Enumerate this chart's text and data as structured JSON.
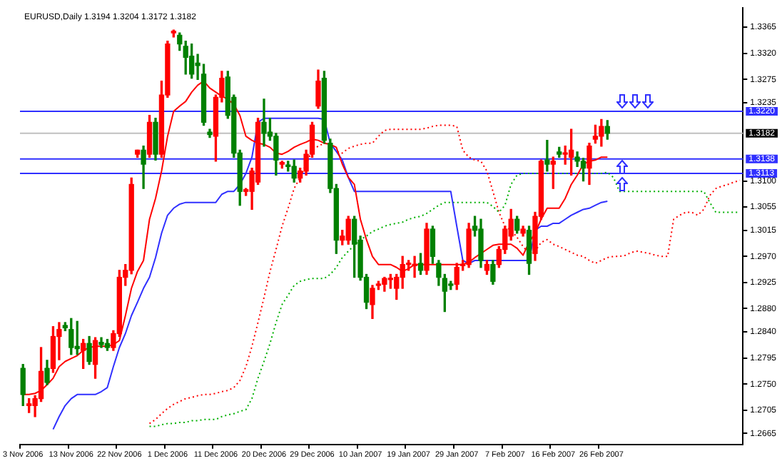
{
  "chart_data": {
    "type": "candlestick",
    "title": "EURUSD,Daily 1.3194 1.3204 1.3172 1.3182",
    "categories": [
      "3 Nov 2006",
      null,
      null,
      null,
      null,
      null,
      null,
      null,
      "13 Nov 2006",
      null,
      null,
      null,
      null,
      null,
      null,
      null,
      "22 Nov 2006",
      null,
      null,
      null,
      null,
      null,
      null,
      null,
      "1 Dec 2006",
      null,
      null,
      null,
      null,
      null,
      null,
      null,
      "11 Dec 2006",
      null,
      null,
      null,
      null,
      null,
      null,
      null,
      "20 Dec 2006",
      null,
      null,
      null,
      null,
      null,
      null,
      null,
      "29 Dec 2006",
      null,
      null,
      null,
      null,
      null,
      null,
      null,
      "10 Jan 2007",
      null,
      null,
      null,
      null,
      null,
      null,
      null,
      "19 Jan 2007",
      null,
      null,
      null,
      null,
      null,
      null,
      null,
      "29 Jan 2007",
      null,
      null,
      null,
      null,
      null,
      null,
      null,
      "7 Feb 2007",
      null,
      null,
      null,
      null,
      null,
      null,
      null,
      "16 Feb 2007",
      null,
      null,
      null,
      null,
      null,
      null,
      null,
      "26 Feb 2007",
      null,
      null,
      null,
      null,
      null,
      null,
      null,
      null,
      null,
      null,
      null,
      null,
      null,
      null,
      null,
      null,
      null,
      null,
      null,
      null,
      null,
      null,
      null
    ],
    "ohlc": [
      [
        1.2777,
        1.2784,
        1.2713,
        1.2732
      ],
      [
        1.2713,
        1.2725,
        1.2701,
        1.2716
      ],
      [
        1.2713,
        1.273,
        1.2694,
        1.2725
      ],
      [
        1.2725,
        1.2813,
        1.272,
        1.2772
      ],
      [
        1.2777,
        1.2791,
        1.2749,
        1.2753
      ],
      [
        1.2777,
        1.2849,
        1.277,
        1.2832
      ],
      [
        1.2832,
        1.2856,
        1.2792,
        1.2844
      ],
      [
        1.2851,
        1.2856,
        1.2842,
        1.2847
      ],
      [
        1.2844,
        1.2863,
        1.2801,
        1.2813
      ],
      [
        1.2815,
        1.2858,
        1.2801,
        1.2811
      ],
      [
        1.2808,
        1.2827,
        1.2777,
        1.282
      ],
      [
        1.282,
        1.2832,
        1.2784,
        1.2789
      ],
      [
        1.2784,
        1.283,
        1.276,
        1.2825
      ],
      [
        1.2822,
        1.283,
        1.2813,
        1.2818
      ],
      [
        1.282,
        1.2827,
        1.2808,
        1.2813
      ],
      [
        1.2813,
        1.2842,
        1.2808,
        1.2837
      ],
      [
        1.2837,
        1.2946,
        1.2832,
        1.2934
      ],
      [
        1.2934,
        1.2956,
        1.292,
        1.2946
      ],
      [
        1.2946,
        1.3105,
        1.294,
        1.3094
      ],
      [
        1.3146,
        1.3153,
        1.3141,
        1.3153
      ],
      [
        1.3153,
        1.316,
        1.3087,
        1.3129
      ],
      [
        1.3146,
        1.3213,
        1.3141,
        1.3201
      ],
      [
        1.3201,
        1.3208,
        1.3136,
        1.3146
      ],
      [
        1.3146,
        1.3272,
        1.3141,
        1.3248
      ],
      [
        1.3248,
        1.3341,
        1.3244,
        1.3336
      ],
      [
        1.3355,
        1.336,
        1.3348,
        1.3358
      ],
      [
        1.3351,
        1.3355,
        1.3325,
        1.3336
      ],
      [
        1.3332,
        1.3341,
        1.3284,
        1.3313
      ],
      [
        1.3315,
        1.3336,
        1.3277,
        1.3284
      ],
      [
        1.3303,
        1.3318,
        1.3275,
        1.3299
      ],
      [
        1.3284,
        1.3301,
        1.3196,
        1.3201
      ],
      [
        1.3184,
        1.3189,
        1.3175,
        1.318
      ],
      [
        1.3177,
        1.3248,
        1.3134,
        1.3244
      ],
      [
        1.3244,
        1.3289,
        1.3236,
        1.3277
      ],
      [
        1.3279,
        1.3289,
        1.3208,
        1.3213
      ],
      [
        1.3244,
        1.3248,
        1.3141,
        1.3148
      ],
      [
        1.3148,
        1.3153,
        1.3058,
        1.3082
      ],
      [
        1.3082,
        1.3087,
        1.3075,
        1.3085
      ],
      [
        1.3082,
        1.3122,
        1.3051,
        1.3117
      ],
      [
        1.3098,
        1.3208,
        1.3094,
        1.3201
      ],
      [
        1.3201,
        1.3241,
        1.316,
        1.3182
      ],
      [
        1.3184,
        1.3208,
        1.317,
        1.3177
      ],
      [
        1.3177,
        1.3182,
        1.311,
        1.3136
      ],
      [
        1.3129,
        1.3134,
        1.3122,
        1.3132
      ],
      [
        1.3127,
        1.3134,
        1.3117,
        1.3125
      ],
      [
        1.3125,
        1.3136,
        1.3098,
        1.3105
      ],
      [
        1.3105,
        1.3122,
        1.3098,
        1.3117
      ],
      [
        1.3117,
        1.3153,
        1.311,
        1.3146
      ],
      [
        1.3146,
        1.3201,
        1.3141,
        1.3196
      ],
      [
        1.3229,
        1.3291,
        1.3225,
        1.3272
      ],
      [
        1.3277,
        1.3289,
        1.3165,
        1.317
      ],
      [
        1.3165,
        1.3172,
        1.308,
        1.3087
      ],
      [
        1.3087,
        1.3094,
        1.2975,
        1.2998
      ],
      [
        1.2998,
        1.3015,
        1.299,
        1.3005
      ],
      [
        1.2998,
        1.3039,
        1.2991,
        1.3034
      ],
      [
        1.3034,
        1.3039,
        1.2934,
        1.2991
      ],
      [
        1.2998,
        1.3005,
        1.2929,
        1.2934
      ],
      [
        1.2934,
        1.2939,
        1.288,
        1.2891
      ],
      [
        1.2887,
        1.292,
        1.2863,
        1.2915
      ],
      [
        1.292,
        1.2927,
        1.2913,
        1.2922
      ],
      [
        1.2922,
        1.2934,
        1.291,
        1.2932
      ],
      [
        1.293,
        1.2939,
        1.2915,
        1.2932
      ],
      [
        1.2915,
        1.2939,
        1.2896,
        1.2934
      ],
      [
        1.2934,
        1.297,
        1.2915,
        1.2956
      ],
      [
        1.2956,
        1.2963,
        1.2946,
        1.2958
      ],
      [
        1.2954,
        1.297,
        1.2934,
        1.2956
      ],
      [
        1.2958,
        1.2975,
        1.2939,
        1.2946
      ],
      [
        1.2946,
        1.3027,
        1.2939,
        1.3017
      ],
      [
        1.3017,
        1.3022,
        1.2958,
        1.297
      ],
      [
        1.2958,
        1.2963,
        1.292,
        1.2934
      ],
      [
        1.2932,
        1.2939,
        1.2875,
        1.291
      ],
      [
        1.2922,
        1.2927,
        1.2913,
        1.292
      ],
      [
        1.2922,
        1.2958,
        1.2913,
        1.2951
      ],
      [
        1.2954,
        1.2963,
        1.2946,
        1.2956
      ],
      [
        1.2956,
        1.3027,
        1.2951,
        1.3017
      ],
      [
        1.3022,
        1.3039,
        1.3005,
        1.3015
      ],
      [
        1.3017,
        1.3034,
        1.2951,
        1.2963
      ],
      [
        1.2946,
        1.2963,
        1.2939,
        1.2956
      ],
      [
        1.2956,
        1.2963,
        1.2922,
        1.2927
      ],
      [
        1.2956,
        1.2987,
        1.2951,
        1.2982
      ],
      [
        1.2982,
        1.3022,
        1.2975,
        1.3017
      ],
      [
        1.3005,
        1.3051,
        1.2998,
        1.3034
      ],
      [
        1.3034,
        1.3039,
        1.301,
        1.3015
      ],
      [
        1.301,
        1.3022,
        1.3005,
        1.3017
      ],
      [
        1.3015,
        1.3022,
        1.2939,
        1.2958
      ],
      [
        1.2975,
        1.3046,
        1.2963,
        1.3039
      ],
      [
        1.3039,
        1.3136,
        1.3034,
        1.3134
      ],
      [
        1.3136,
        1.317,
        1.3117,
        1.3129
      ],
      [
        1.3129,
        1.3141,
        1.3087,
        1.3134
      ],
      [
        1.315,
        1.3158,
        1.3141,
        1.3146
      ],
      [
        1.3146,
        1.316,
        1.3129,
        1.3148
      ],
      [
        1.3141,
        1.3189,
        1.311,
        1.3153
      ],
      [
        1.3141,
        1.315,
        1.3125,
        1.3134
      ],
      [
        1.3134,
        1.3139,
        1.31,
        1.3122
      ],
      [
        1.3122,
        1.3165,
        1.3094,
        1.316
      ],
      [
        1.3172,
        1.3196,
        1.3165,
        1.3177
      ],
      [
        1.3177,
        1.3206,
        1.316,
        1.3194
      ],
      [
        1.3194,
        1.3204,
        1.3172,
        1.3182
      ],
      null,
      null,
      null,
      null,
      null,
      null,
      null,
      null,
      null,
      null,
      null,
      null,
      null,
      null,
      null,
      null,
      null,
      null,
      null,
      null,
      null,
      null
    ],
    "colors": [
      "#008000",
      "#ff0000",
      "#ff0000",
      "#ff0000",
      "#008000",
      "#ff0000",
      "#ff0000",
      "#008000",
      "#008000",
      "#008000",
      "#ff0000",
      "#008000",
      "#ff0000",
      "#008000",
      "#008000",
      "#ff0000",
      "#ff0000",
      "#ff0000",
      "#ff0000",
      "#ff0000",
      "#008000",
      "#ff0000",
      "#008000",
      "#ff0000",
      "#ff0000",
      "#ff0000",
      "#008000",
      "#008000",
      "#008000",
      "#008000",
      "#008000",
      "#008000",
      "#ff0000",
      "#ff0000",
      "#008000",
      "#008000",
      "#008000",
      "#ff0000",
      "#ff0000",
      "#ff0000",
      "#008000",
      "#008000",
      "#008000",
      "#ff0000",
      "#008000",
      "#008000",
      "#ff0000",
      "#ff0000",
      "#ff0000",
      "#ff0000",
      "#008000",
      "#008000",
      "#008000",
      "#ff0000",
      "#ff0000",
      "#008000",
      "#008000",
      "#008000",
      "#ff0000",
      "#ff0000",
      "#ff0000",
      "#ff0000",
      "#ff0000",
      "#ff0000",
      "#ff0000",
      "#ff0000",
      "#008000",
      "#ff0000",
      "#008000",
      "#008000",
      "#008000",
      "#008000",
      "#ff0000",
      "#ff0000",
      "#ff0000",
      "#008000",
      "#008000",
      "#ff0000",
      "#008000",
      "#ff0000",
      "#ff0000",
      "#ff0000",
      "#008000",
      "#ff0000",
      "#008000",
      "#ff0000",
      "#ff0000",
      "#008000",
      "#ff0000",
      "#008000",
      "#ff0000",
      "#ff0000",
      "#008000",
      "#008000",
      "#ff0000",
      "#ff0000",
      "#ff0000",
      "#008000",
      null,
      null,
      null,
      null,
      null,
      null,
      null,
      null,
      null,
      null,
      null,
      null,
      null,
      null,
      null,
      null,
      null,
      null,
      null,
      null,
      null,
      null
    ],
    "series": [
      {
        "type": "line",
        "color": "#ff0000",
        "line_style": "solid",
        "values": [
          1.2732,
          1.2732,
          1.2734,
          1.2739,
          1.2749,
          1.276,
          1.278,
          1.2789,
          1.2794,
          1.2799,
          1.2808,
          1.2813,
          1.2815,
          1.2815,
          1.2815,
          1.2818,
          1.2825,
          1.2868,
          1.2915,
          1.2944,
          1.2963,
          1.3034,
          1.307,
          1.3117,
          1.3177,
          1.322,
          1.3229,
          1.3237,
          1.3253,
          1.3265,
          1.3272,
          1.326,
          1.3253,
          1.3246,
          1.3241,
          1.3232,
          1.3213,
          1.3177,
          1.317,
          1.3165,
          1.3163,
          1.3158,
          1.3148,
          1.3146,
          1.3151,
          1.3158,
          1.3163,
          1.3167,
          1.3172,
          1.317,
          1.3165,
          1.3163,
          1.3158,
          1.3129,
          1.3106,
          1.3094,
          1.3034,
          1.2999,
          1.297,
          1.2956,
          1.2956,
          1.2956,
          1.2951,
          1.2944,
          1.2949,
          1.2956,
          1.2956,
          1.2956,
          1.2956,
          1.2956,
          1.2956,
          1.2956,
          1.2956,
          1.2956,
          1.296,
          1.2968,
          1.2975,
          1.2982,
          1.2989,
          1.2991,
          1.2991,
          1.2991,
          1.2984,
          1.2972,
          1.2994,
          1.301,
          1.3034,
          1.3053,
          1.3053,
          1.3053,
          1.307,
          1.3094,
          1.311,
          1.3129,
          1.3134,
          1.3136,
          1.3141,
          1.3141,
          null,
          null,
          null,
          null,
          null,
          null,
          null,
          null,
          null,
          null,
          null,
          null,
          null,
          null,
          null,
          null,
          null,
          null,
          null,
          null,
          null,
          null
        ]
      },
      {
        "type": "line",
        "color": "#3030ff",
        "line_style": "solid",
        "values": [
          null,
          null,
          null,
          null,
          null,
          1.2672,
          1.2694,
          1.2713,
          1.2725,
          1.2732,
          1.2732,
          1.2732,
          1.2732,
          1.2737,
          1.2744,
          1.278,
          1.2813,
          1.2837,
          1.2868,
          1.2891,
          1.2915,
          1.2934,
          1.2968,
          1.301,
          1.3041,
          1.3053,
          1.306,
          1.3063,
          1.3063,
          1.3063,
          1.3063,
          1.3063,
          1.3063,
          1.3077,
          1.3082,
          1.3082,
          1.3094,
          1.3113,
          1.3141,
          1.3201,
          1.3208,
          1.3208,
          1.3208,
          1.3208,
          1.3208,
          1.3208,
          1.3208,
          1.3208,
          1.3208,
          1.3208,
          1.3206,
          1.3165,
          1.3151,
          1.3136,
          1.3106,
          1.3082,
          1.3082,
          1.3082,
          1.3082,
          1.3082,
          1.3082,
          1.3082,
          1.3082,
          1.3082,
          1.3082,
          1.3082,
          1.3082,
          1.3082,
          1.3082,
          1.3082,
          1.3082,
          1.3082,
          1.3022,
          1.2963,
          1.2958,
          1.2963,
          1.2963,
          1.2963,
          1.2963,
          1.2963,
          1.2963,
          1.2963,
          1.2963,
          1.2963,
          1.2963,
          1.3015,
          1.3022,
          1.3022,
          1.3027,
          1.3027,
          1.3034,
          1.3041,
          1.3046,
          1.3051,
          1.3053,
          1.3058,
          1.3063,
          1.3065,
          null,
          null,
          null,
          null,
          null,
          null,
          null,
          null,
          null,
          null,
          null,
          null,
          null,
          null,
          null,
          null,
          null,
          null,
          null,
          null,
          null,
          null
        ]
      },
      {
        "type": "line",
        "color": "#00b000",
        "line_style": "dotted",
        "values": [
          null,
          null,
          null,
          null,
          null,
          null,
          null,
          null,
          null,
          null,
          null,
          null,
          null,
          null,
          null,
          null,
          null,
          null,
          null,
          null,
          null,
          1.2677,
          1.2677,
          1.268,
          1.2682,
          1.2682,
          1.2684,
          1.2684,
          1.2687,
          1.2687,
          1.2689,
          1.2689,
          1.2689,
          1.2694,
          1.2697,
          1.2699,
          1.2703,
          1.2706,
          1.2725,
          1.276,
          1.2789,
          1.282,
          1.2856,
          1.2887,
          1.2903,
          1.292,
          1.2927,
          1.293,
          1.2932,
          1.2932,
          1.2932,
          1.2939,
          1.2951,
          1.2968,
          1.2979,
          1.2989,
          1.2999,
          1.3005,
          1.3013,
          1.3017,
          1.3022,
          1.3025,
          1.3027,
          1.3029,
          1.3034,
          1.3037,
          1.3039,
          1.3044,
          1.3051,
          1.3058,
          1.3063,
          1.3063,
          1.3063,
          1.3063,
          1.3063,
          1.3063,
          1.3063,
          1.3063,
          1.3056,
          1.3046,
          1.3058,
          1.3094,
          1.311,
          1.3113,
          1.3113,
          1.3113,
          1.3113,
          1.3113,
          1.3113,
          1.3113,
          1.3113,
          1.3113,
          1.3113,
          1.3113,
          1.3113,
          1.3113,
          1.3113,
          1.3115,
          1.3106,
          1.3082,
          1.3082,
          1.3082,
          1.3082,
          1.3082,
          1.3082,
          1.3082,
          1.3082,
          1.3082,
          1.3082,
          1.3082,
          1.3082,
          1.3082,
          1.3082,
          1.3082,
          1.3063,
          1.3046,
          1.3046,
          1.3046,
          1.3046,
          1.3046
        ]
      },
      {
        "type": "line",
        "color": "#ff0000",
        "line_style": "dotted",
        "values": [
          null,
          null,
          null,
          null,
          null,
          null,
          null,
          null,
          null,
          null,
          null,
          null,
          null,
          null,
          null,
          null,
          null,
          null,
          null,
          null,
          null,
          1.2682,
          1.2689,
          1.2699,
          1.2708,
          1.2715,
          1.272,
          1.2725,
          1.2727,
          1.273,
          1.2732,
          1.2732,
          1.2734,
          1.2737,
          1.2739,
          1.2744,
          1.2756,
          1.278,
          1.2815,
          1.2856,
          1.2899,
          1.2944,
          1.2982,
          1.3022,
          1.3053,
          1.3087,
          1.3106,
          1.3129,
          1.3153,
          1.316,
          1.3165,
          1.3165,
          1.3151,
          1.3148,
          1.3156,
          1.316,
          1.3163,
          1.3165,
          1.3165,
          1.3177,
          1.3187,
          1.3189,
          1.3189,
          1.3189,
          1.3189,
          1.3189,
          1.3189,
          1.3191,
          1.3194,
          1.3196,
          1.3196,
          1.3196,
          1.3194,
          1.3153,
          1.3141,
          1.3136,
          1.3134,
          1.3117,
          1.3082,
          1.3046,
          1.3022,
          1.3015,
          1.3003,
          1.2987,
          1.2975,
          1.2979,
          1.2994,
          1.2999,
          1.2991,
          1.2987,
          1.2982,
          1.2977,
          1.2972,
          1.297,
          1.2963,
          1.2958,
          1.2963,
          1.2968,
          1.297,
          1.297,
          1.2972,
          1.2977,
          1.2979,
          1.2977,
          1.2975,
          1.2972,
          1.297,
          1.297,
          1.3034,
          1.3041,
          1.3046,
          1.3046,
          1.3041,
          1.3051,
          1.3075,
          1.3087,
          1.3091,
          1.3094,
          1.3098,
          1.3101
        ]
      }
    ],
    "ylim": [
      1.2646,
      1.3398
    ],
    "yticks": [
      1.3365,
      {
        "value": 1.332,
        "label": "1.3320"
      },
      1.3275,
      1.3235,
      {
        "value": 1.31,
        "label": "1.3100"
      },
      1.3055,
      1.3015,
      {
        "value": 1.297,
        "label": "1.2970"
      },
      1.2925,
      {
        "value": 1.288,
        "label": "1.2880"
      },
      {
        "value": 1.284,
        "label": "1.2840"
      },
      1.2795,
      {
        "value": 1.275,
        "label": "1.2750"
      },
      1.2705,
      1.2665
    ],
    "ref_lines": [
      {
        "axis": "y",
        "value": 1.322,
        "label": "1.3220",
        "color": "#3030ff"
      },
      {
        "axis": "y",
        "value": 1.3182,
        "label": "1.3182",
        "color": "#c0c0c0"
      },
      {
        "axis": "y",
        "value": 1.3138,
        "label": "1.3138",
        "color": "#3030ff"
      },
      {
        "axis": "y",
        "value": 1.3113,
        "label": "1.3113",
        "color": "#3030ff"
      }
    ],
    "marker": "none",
    "legend": false,
    "grid": false
  }
}
